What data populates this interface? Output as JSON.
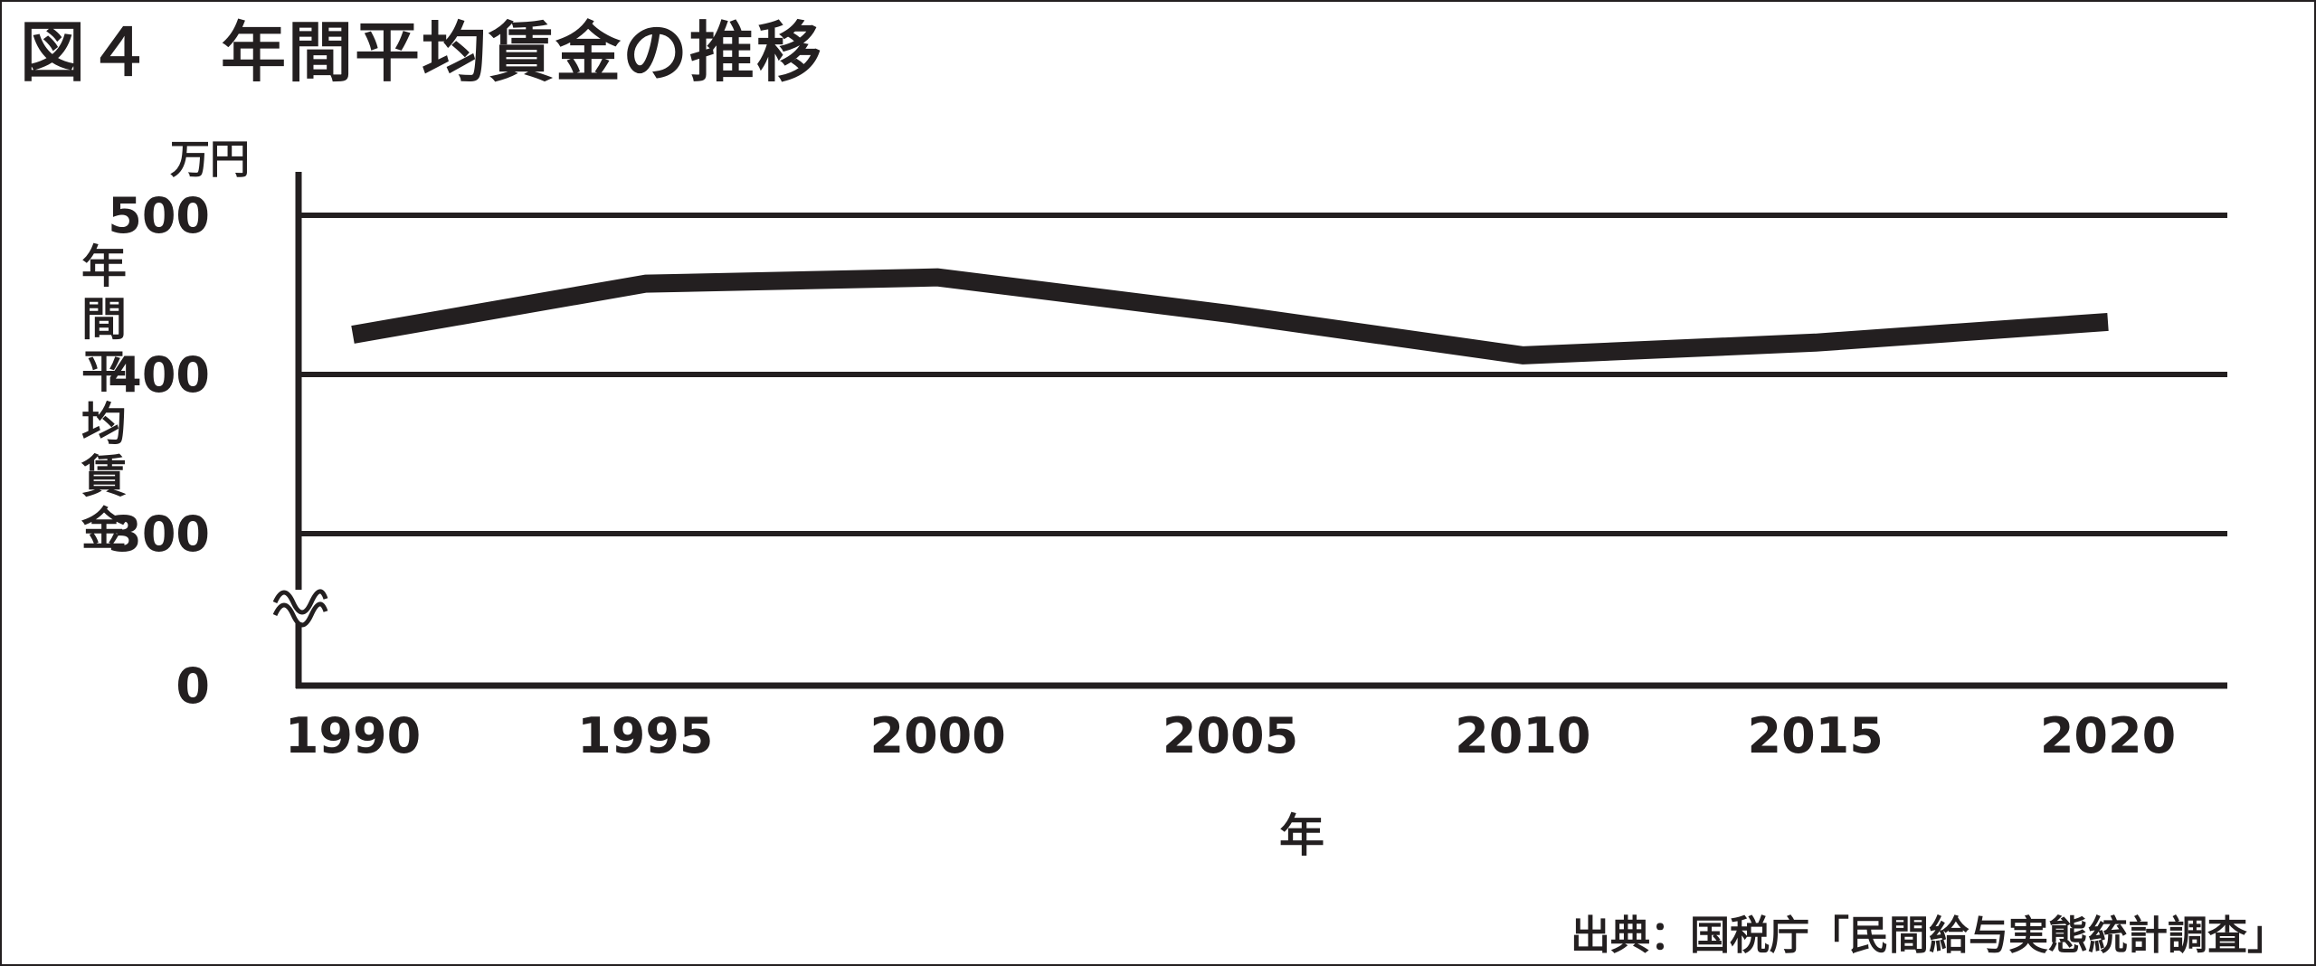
{
  "title": "図４　年間平均賃金の推移",
  "source": "出典：国税庁「民間給与実態統計調査」",
  "colors": {
    "ink": "#231f20",
    "background": "#ffffff"
  },
  "chart_data": {
    "type": "line",
    "unit_label": "万円",
    "ylabel": "年間平均賃金",
    "xlabel": "年",
    "x": [
      1990,
      1995,
      2000,
      2005,
      2010,
      2015,
      2020
    ],
    "x_tick_labels": [
      "1990",
      "1995",
      "2000",
      "2005",
      "2010",
      "2015",
      "2020"
    ],
    "y_tick_labels": [
      "0",
      "300",
      "400",
      "500"
    ],
    "y_ticks": [
      0,
      300,
      400,
      500
    ],
    "axis_break": true,
    "series": [
      {
        "values": [
          425,
          457,
          461,
          438,
          412,
          420,
          433
        ]
      }
    ],
    "grid": true
  }
}
